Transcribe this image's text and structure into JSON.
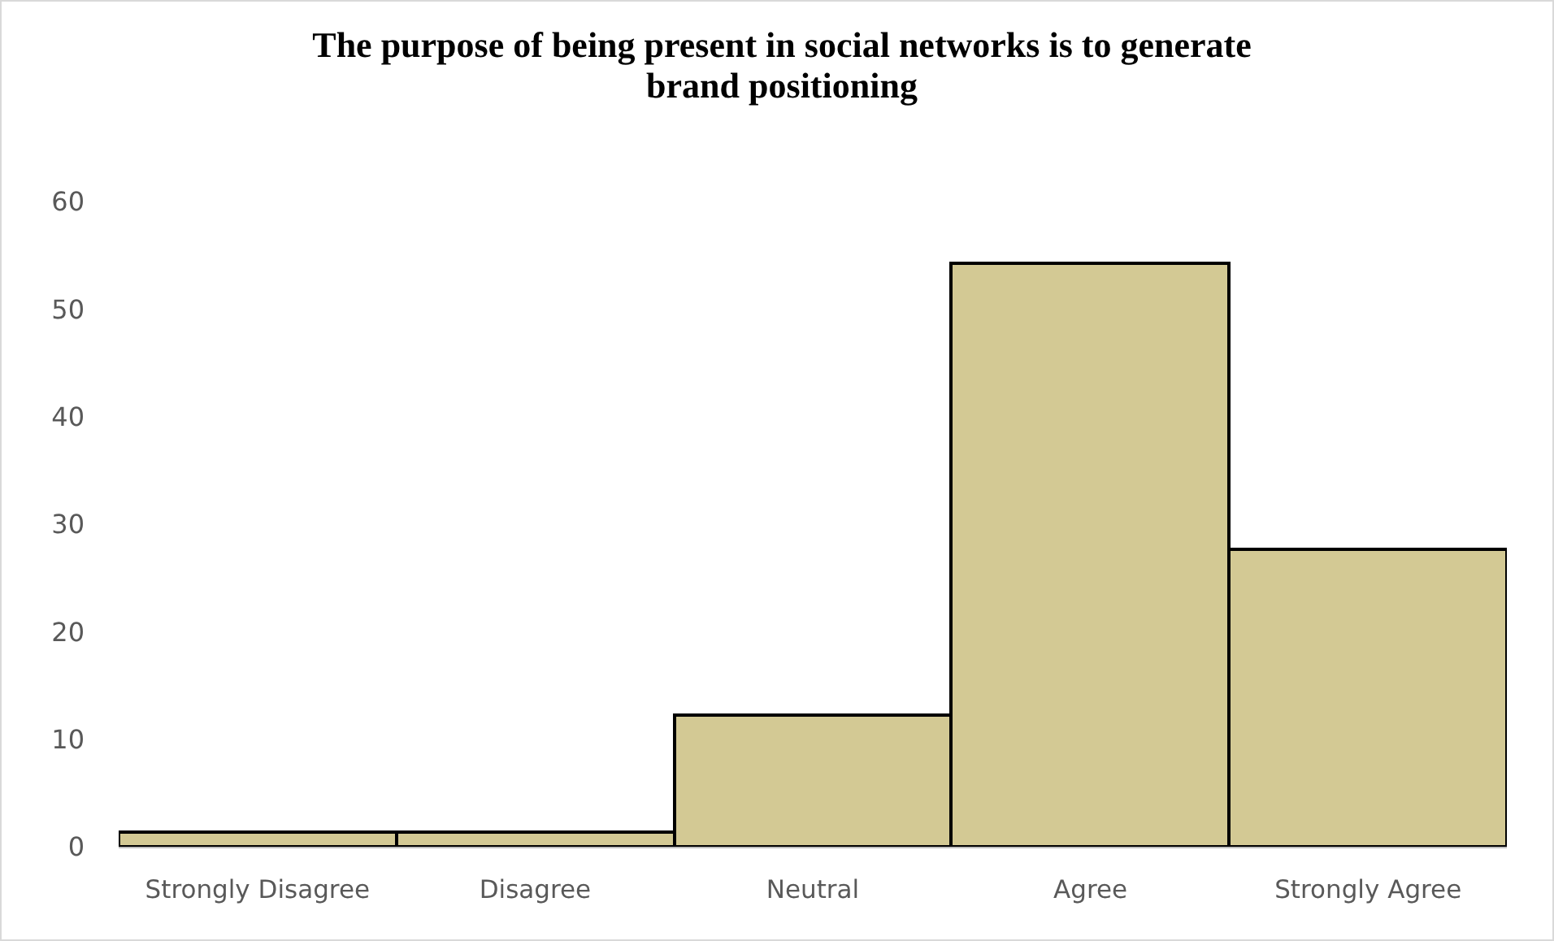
{
  "chart_data": {
    "type": "bar",
    "title": "The purpose of being present in social networks is to generate brand positioning",
    "categories": [
      "Strongly Disagree",
      "Disagree",
      "Neutral",
      "Agree",
      "Strongly Agree"
    ],
    "values": [
      1.3,
      1.3,
      12.3,
      54.3,
      27.7
    ],
    "color": "#d3c994",
    "ylim": [
      0,
      60
    ],
    "yticks": [
      0,
      10,
      20,
      30,
      40,
      50,
      60
    ],
    "grid": false
  }
}
